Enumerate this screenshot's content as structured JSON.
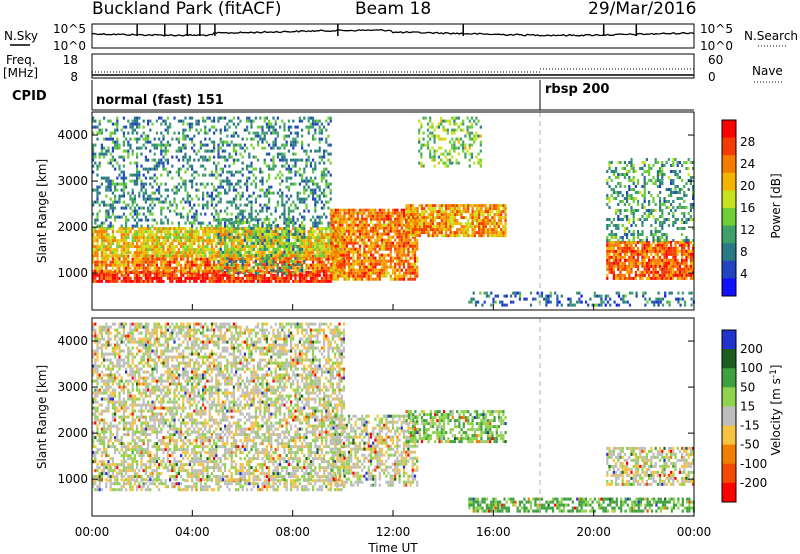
{
  "header": {
    "station": "Buckland Park (fitACF)",
    "beam": "Beam 18",
    "date": "29/Mar/2016"
  },
  "left_labels": {
    "nsky": "N.Sky",
    "nsky_ticks": [
      "10^5",
      "10^0"
    ],
    "freq": "Freq.",
    "freq_unit": "[MHz]",
    "freq_ticks": [
      "18",
      "8"
    ],
    "cpid": "CPID"
  },
  "right_labels": {
    "nsearch": "N.Search",
    "nsearch_ticks": [
      "10^5",
      "10^0"
    ],
    "nave": "Nave",
    "nave_ticks": [
      "60",
      "0"
    ]
  },
  "cpid_segments": [
    {
      "label": "normal (fast) 151",
      "start_hour": 0
    },
    {
      "label": "rbsp 200",
      "start_hour": 18
    }
  ],
  "chart_data": [
    {
      "type": "heatmap",
      "name": "power",
      "ylabel": "Slant Range [km]",
      "yticks": [
        "1000",
        "2000",
        "3000",
        "4000"
      ],
      "ylim": [
        200,
        4500
      ],
      "colorbar": {
        "label": "Power [dB]",
        "ticks": [
          "4",
          "8",
          "12",
          "16",
          "20",
          "24",
          "28"
        ],
        "range": [
          0,
          32
        ],
        "colors": [
          "#1010ff",
          "#2244c0",
          "#2a7a86",
          "#3fa06a",
          "#6ccf35",
          "#c8e31c",
          "#f4b400",
          "#f47d00",
          "#f43c00",
          "#ff0000"
        ]
      },
      "echo_regions": [
        {
          "t": [
            0.0,
            9.5
          ],
          "r": [
            800,
            1050
          ],
          "level": 0.9
        },
        {
          "t": [
            0.0,
            10.0
          ],
          "r": [
            1050,
            1400
          ],
          "level": 0.75
        },
        {
          "t": [
            0.0,
            10.0
          ],
          "r": [
            1400,
            2000
          ],
          "level": 0.6
        },
        {
          "t": [
            5.0,
            8.5
          ],
          "r": [
            1000,
            2200
          ],
          "level": 0.35
        },
        {
          "t": [
            0.0,
            9.5
          ],
          "r": [
            2000,
            4400
          ],
          "level": 0.3
        },
        {
          "t": [
            9.5,
            13.0
          ],
          "r": [
            900,
            2400
          ],
          "level": 0.75
        },
        {
          "t": [
            12.5,
            16.5
          ],
          "r": [
            1800,
            2500
          ],
          "level": 0.7
        },
        {
          "t": [
            13.0,
            15.5
          ],
          "r": [
            3300,
            4400
          ],
          "level": 0.45
        },
        {
          "t": [
            15.0,
            24.0
          ],
          "r": [
            300,
            600
          ],
          "level": 0.25
        },
        {
          "t": [
            20.5,
            24.0
          ],
          "r": [
            900,
            1700
          ],
          "level": 0.8
        },
        {
          "t": [
            20.5,
            24.0
          ],
          "r": [
            1700,
            3500
          ],
          "level": 0.35
        }
      ]
    },
    {
      "type": "heatmap",
      "name": "velocity",
      "ylabel": "Slant Range [km]",
      "yticks": [
        "1000",
        "2000",
        "3000",
        "4000"
      ],
      "ylim": [
        200,
        4500
      ],
      "colorbar": {
        "label": "Velocity [m s-1]",
        "ticks": [
          "200",
          "100",
          "50",
          "15",
          "-15",
          "-50",
          "-100",
          "-200"
        ],
        "range": [
          -250,
          250
        ],
        "colors": [
          "#2233cc",
          "#1b5e20",
          "#3fa03f",
          "#8fd24b",
          "#bdbdbd",
          "#f5c242",
          "#f07f00",
          "#f24a00",
          "#ff0000"
        ]
      },
      "echo_regions": [
        {
          "t": [
            0.0,
            10.0
          ],
          "r": [
            800,
            1000
          ],
          "v": 0
        },
        {
          "t": [
            0.0,
            10.0
          ],
          "r": [
            1000,
            2000
          ],
          "v": 0
        },
        {
          "t": [
            0.0,
            10.0
          ],
          "r": [
            2000,
            4400
          ],
          "v": 0
        },
        {
          "t": [
            9.5,
            13.0
          ],
          "r": [
            900,
            2400
          ],
          "v": 0
        },
        {
          "t": [
            12.5,
            16.5
          ],
          "r": [
            1800,
            2500
          ],
          "v": 40
        },
        {
          "t": [
            15.0,
            24.0
          ],
          "r": [
            300,
            600
          ],
          "v": 60
        },
        {
          "t": [
            20.5,
            24.0
          ],
          "r": [
            900,
            1700
          ],
          "v": 0
        }
      ]
    }
  ],
  "x_axis": {
    "label": "Time UT",
    "ticks": [
      "00:00",
      "04:00",
      "08:00",
      "12:00",
      "16:00",
      "20:00",
      "00:00"
    ]
  }
}
